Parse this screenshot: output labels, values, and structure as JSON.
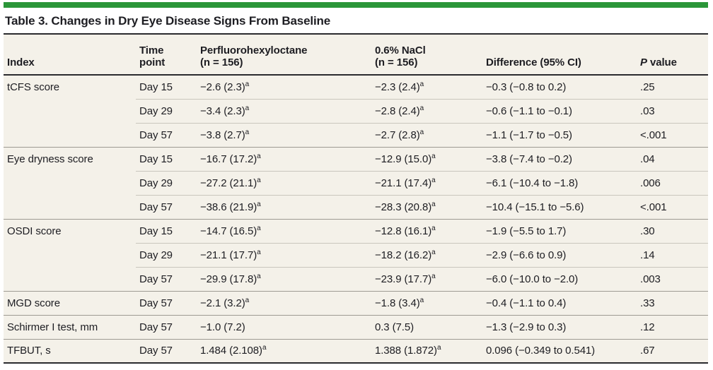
{
  "title": "Table 3. Changes in Dry Eye Disease Signs From Baseline",
  "colors": {
    "accent_green": "#2b9639",
    "table_background": "#f4f1e9",
    "dark_rule": "#2a2a2e",
    "group_rule": "#9d9a92",
    "sub_rule": "#c9c6bd"
  },
  "table": {
    "columns": [
      {
        "id": "index",
        "lines": [
          "Index"
        ]
      },
      {
        "id": "time_point",
        "lines": [
          "Time",
          "point"
        ]
      },
      {
        "id": "pfho",
        "lines": [
          "Perfluorohexyloctane",
          "(n = 156)"
        ]
      },
      {
        "id": "nacl",
        "lines": [
          "0.6% NaCl",
          "(n = 156)"
        ]
      },
      {
        "id": "difference",
        "lines": [
          "Difference (95% CI)"
        ]
      },
      {
        "id": "p_value",
        "lines": [
          "*P* value"
        ]
      }
    ],
    "rows": [
      {
        "group_start": true,
        "index": "tCFS score",
        "time_point": "Day 15",
        "pfho": "−2.6 (2.3)^a",
        "nacl": "−2.3 (2.4)^a",
        "difference": "−0.3 (−0.8 to 0.2)",
        "p_value": ".25"
      },
      {
        "group_start": false,
        "index": "",
        "time_point": "Day 29",
        "pfho": "−3.4 (2.3)^a",
        "nacl": "−2.8 (2.4)^a",
        "difference": "−0.6 (−1.1 to −0.1)",
        "p_value": ".03"
      },
      {
        "group_start": false,
        "index": "",
        "time_point": "Day 57",
        "pfho": "−3.8 (2.7)^a",
        "nacl": "−2.7 (2.8)^a",
        "difference": "−1.1 (−1.7 to −0.5)",
        "p_value": "<.001"
      },
      {
        "group_start": true,
        "index": "Eye dryness score",
        "time_point": "Day 15",
        "pfho": "−16.7 (17.2)^a",
        "nacl": "−12.9 (15.0)^a",
        "difference": "−3.8 (−7.4 to −0.2)",
        "p_value": ".04"
      },
      {
        "group_start": false,
        "index": "",
        "time_point": "Day 29",
        "pfho": "−27.2 (21.1)^a",
        "nacl": "−21.1 (17.4)^a",
        "difference": "−6.1 (−10.4 to −1.8)",
        "p_value": ".006"
      },
      {
        "group_start": false,
        "index": "",
        "time_point": "Day 57",
        "pfho": "−38.6 (21.9)^a",
        "nacl": "−28.3 (20.8)^a",
        "difference": "−10.4 (−15.1 to −5.6)",
        "p_value": "<.001"
      },
      {
        "group_start": true,
        "index": "OSDI score",
        "time_point": "Day 15",
        "pfho": "−14.7 (16.5)^a",
        "nacl": "−12.8 (16.1)^a",
        "difference": "−1.9 (−5.5 to 1.7)",
        "p_value": ".30"
      },
      {
        "group_start": false,
        "index": "",
        "time_point": "Day 29",
        "pfho": "−21.1 (17.7)^a",
        "nacl": "−18.2 (16.2)^a",
        "difference": "−2.9 (−6.6 to 0.9)",
        "p_value": ".14"
      },
      {
        "group_start": false,
        "index": "",
        "time_point": "Day 57",
        "pfho": "−29.9 (17.8)^a",
        "nacl": "−23.9 (17.7)^a",
        "difference": "−6.0 (−10.0 to −2.0)",
        "p_value": ".003"
      },
      {
        "group_start": true,
        "index": "MGD score",
        "time_point": "Day 57",
        "pfho": "−2.1 (3.2)^a",
        "nacl": "−1.8 (3.4)^a",
        "difference": "−0.4 (−1.1 to 0.4)",
        "p_value": ".33"
      },
      {
        "group_start": true,
        "index": "Schirmer I test, mm",
        "time_point": "Day 57",
        "pfho": "−1.0 (7.2)",
        "nacl": "0.3 (7.5)",
        "difference": "−1.3 (−2.9 to 0.3)",
        "p_value": ".12"
      },
      {
        "group_start": true,
        "index": "TFBUT, s",
        "time_point": "Day 57",
        "pfho": "1.484 (2.108)^a",
        "nacl": "1.388 (1.872)^a",
        "difference": "0.096 (−0.349 to 0.541)",
        "p_value": ".67"
      }
    ]
  }
}
